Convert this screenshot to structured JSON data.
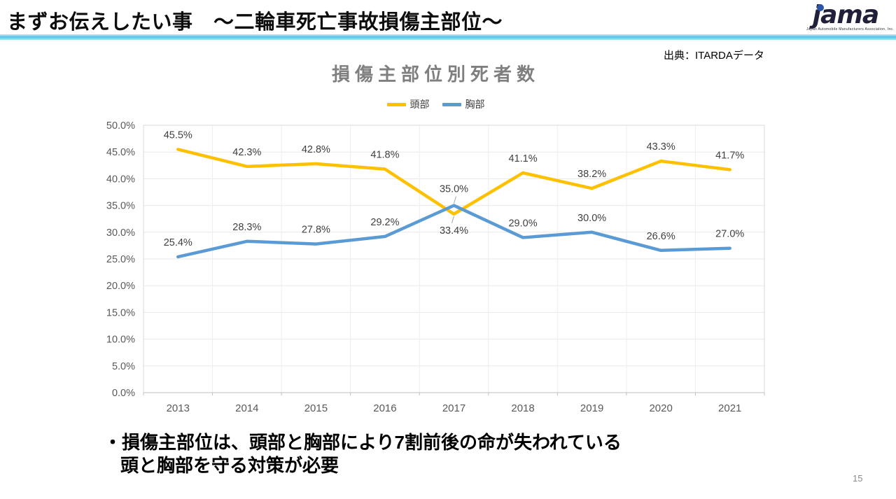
{
  "header": {
    "title": "まずお伝えしたい事　～二輪車死亡事故損傷主部位～",
    "logo": {
      "word": "jama",
      "subtext": "Japan Automobile Manufacturers Association, Inc.",
      "dot_color": "#2a56a5"
    }
  },
  "source": "出典：ITARDAデータ",
  "chart_data": {
    "type": "line",
    "title": "損傷主部位別死者数",
    "categories": [
      "2013",
      "2014",
      "2015",
      "2016",
      "2017",
      "2018",
      "2019",
      "2020",
      "2021"
    ],
    "series": [
      {
        "name": "頭部",
        "color": "#FFC000",
        "values": [
          45.5,
          42.3,
          42.8,
          41.8,
          33.4,
          41.1,
          38.2,
          43.3,
          41.7
        ]
      },
      {
        "name": "胸部",
        "color": "#5B9BD5",
        "values": [
          25.4,
          28.3,
          27.8,
          29.2,
          35.0,
          29.0,
          30.0,
          26.6,
          27.0
        ]
      }
    ],
    "ylim": [
      0,
      50
    ],
    "ytick_step": 5,
    "grid": true,
    "legend_position": "top",
    "label_format": "percent1",
    "annotations": {
      "label_below": [
        {
          "series": 0,
          "index": 4
        }
      ],
      "leader_lines": [
        {
          "series": 0,
          "index": 4
        },
        {
          "series": 1,
          "index": 4
        }
      ]
    }
  },
  "notes": {
    "line1": "・損傷主部位は、頭部と胸部により7割前後の命が失われている",
    "line2": "頭と胸部を守る対策が必要"
  },
  "page_number": "15"
}
